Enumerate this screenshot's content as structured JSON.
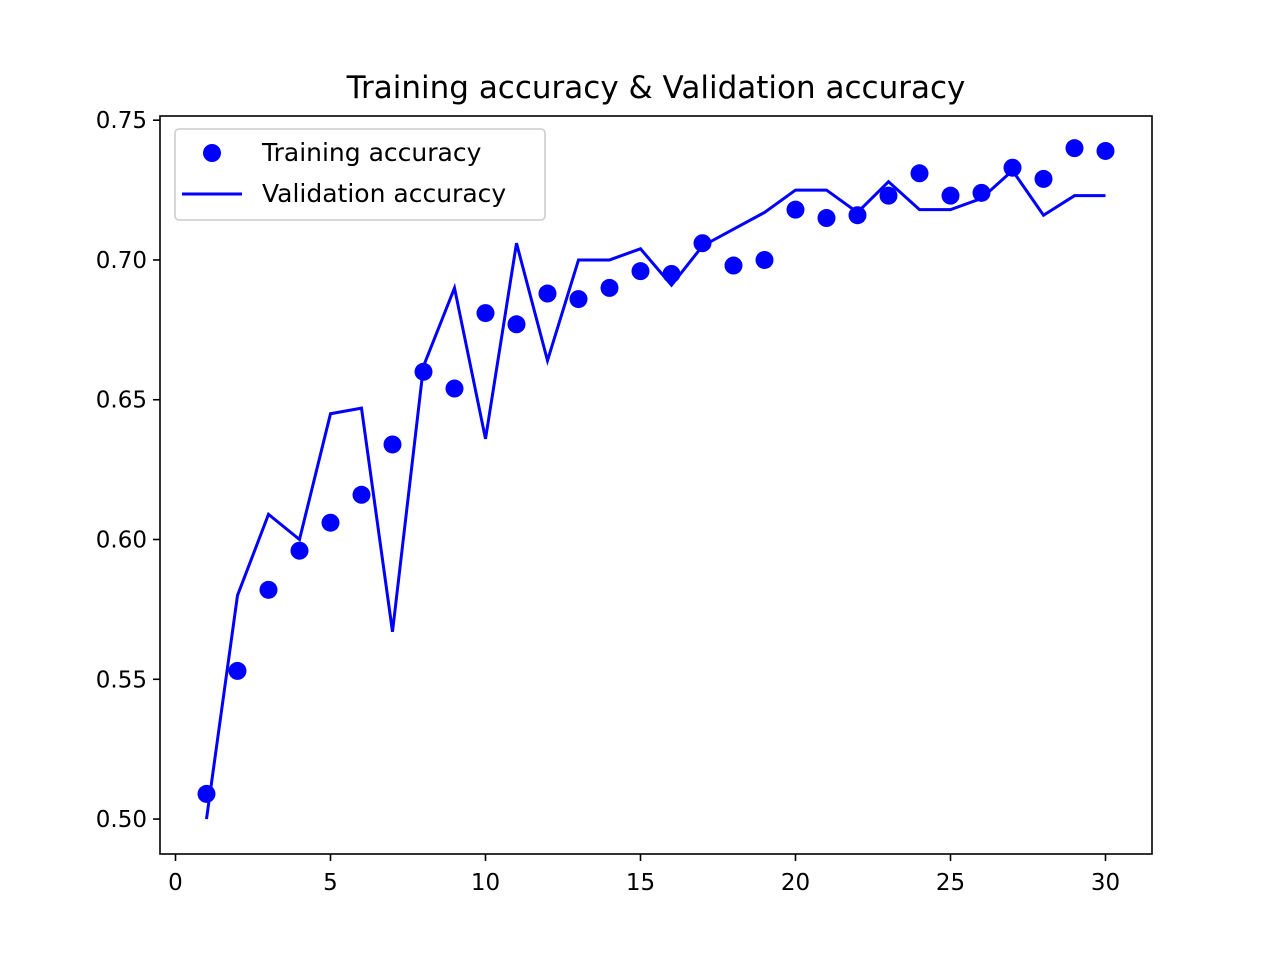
{
  "chart_data": {
    "type": "line",
    "title": "Training accuracy & Validation accuracy",
    "xlabel": "",
    "ylabel": "",
    "xlim": [
      -0.5,
      31.5
    ],
    "ylim": [
      0.4875,
      0.7515
    ],
    "xticks": [
      0,
      5,
      10,
      15,
      20,
      25,
      30
    ],
    "xtick_labels": [
      "0",
      "5",
      "10",
      "15",
      "20",
      "25",
      "30"
    ],
    "yticks": [
      0.5,
      0.55,
      0.6,
      0.65,
      0.7,
      0.75
    ],
    "ytick_labels": [
      "0.50",
      "0.55",
      "0.60",
      "0.65",
      "0.70",
      "0.75"
    ],
    "grid": false,
    "legend_position": "top-left",
    "color": "#0000ff",
    "x": [
      1,
      2,
      3,
      4,
      5,
      6,
      7,
      8,
      9,
      10,
      11,
      12,
      13,
      14,
      15,
      16,
      17,
      18,
      19,
      20,
      21,
      22,
      23,
      24,
      25,
      26,
      27,
      28,
      29,
      30
    ],
    "series": [
      {
        "name": "Training accuracy",
        "style": "markers",
        "values": [
          0.509,
          0.553,
          0.582,
          0.596,
          0.606,
          0.616,
          0.634,
          0.66,
          0.654,
          0.681,
          0.677,
          0.688,
          0.686,
          0.69,
          0.696,
          0.695,
          0.706,
          0.698,
          0.7,
          0.718,
          0.715,
          0.716,
          0.723,
          0.731,
          0.723,
          0.724,
          0.733,
          0.729,
          0.74,
          0.739
        ]
      },
      {
        "name": "Validation accuracy",
        "style": "line",
        "values": [
          0.5,
          0.58,
          0.609,
          0.6,
          0.645,
          0.647,
          0.567,
          0.662,
          0.69,
          0.636,
          0.706,
          0.664,
          0.7,
          0.7,
          0.704,
          0.691,
          0.705,
          0.711,
          0.717,
          0.725,
          0.725,
          0.717,
          0.728,
          0.718,
          0.718,
          0.722,
          0.732,
          0.716,
          0.723,
          0.723
        ]
      }
    ]
  }
}
